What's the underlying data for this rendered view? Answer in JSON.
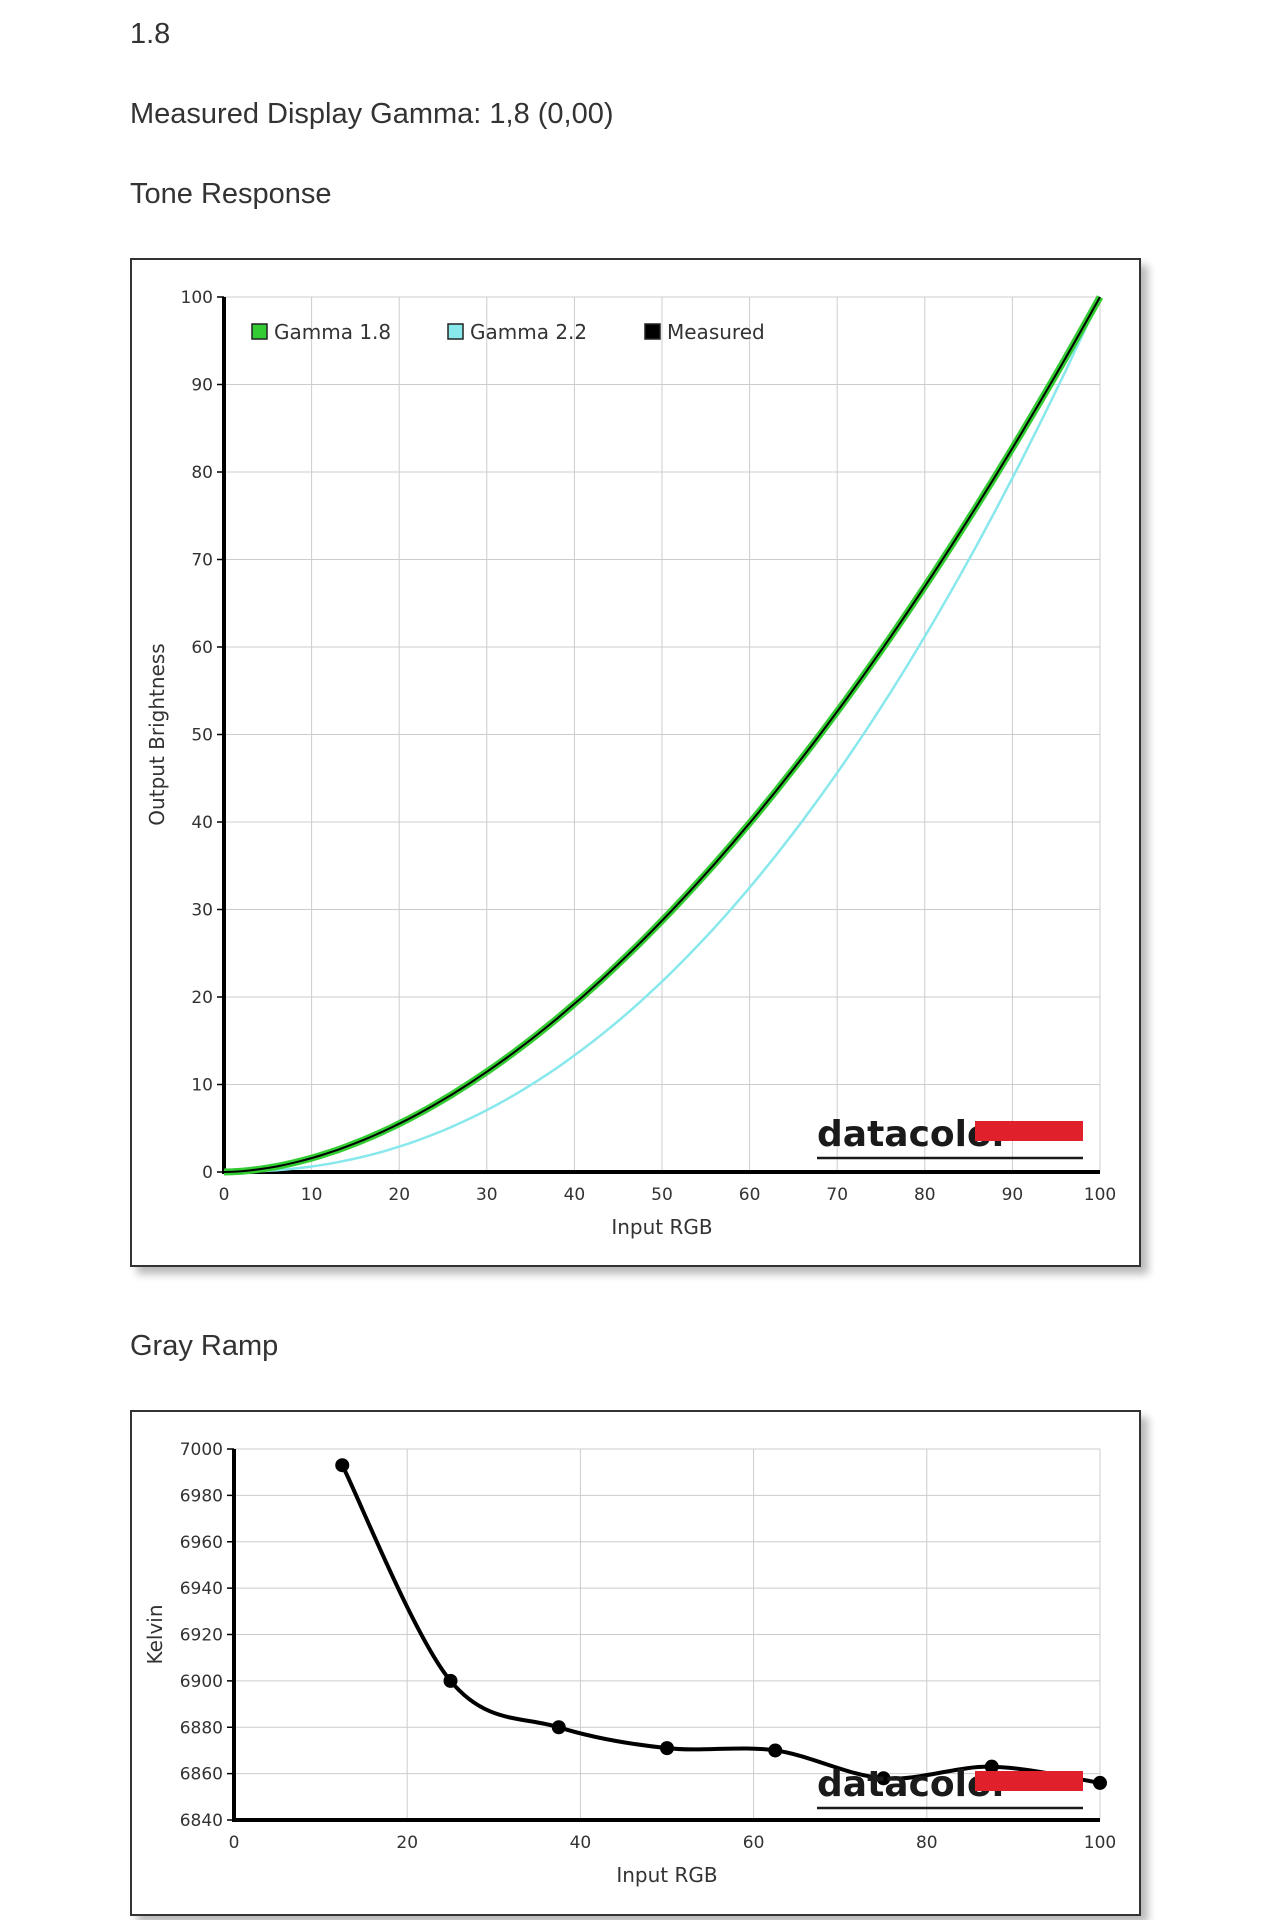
{
  "page": {
    "heading_value": "1.8",
    "measured_gamma": "Measured Display Gamma: 1,8 (0,00)",
    "tone_title": "Tone Response",
    "gray_title": "Gray Ramp",
    "brand": "datacolor"
  },
  "chart_data": [
    {
      "type": "line",
      "xlabel": "Input RGB",
      "ylabel": "Output Brightness",
      "xlim": [
        0,
        100
      ],
      "ylim": [
        0,
        100
      ],
      "xticks": [
        0,
        10,
        20,
        30,
        40,
        50,
        60,
        70,
        80,
        90,
        100
      ],
      "yticks": [
        0,
        10,
        20,
        30,
        40,
        50,
        60,
        70,
        80,
        90,
        100
      ],
      "grid": true,
      "legend_position": "top-left",
      "series": [
        {
          "name": "Gamma 1.8",
          "color": "#33cc33",
          "gamma": 1.8,
          "x": [
            0,
            10,
            20,
            30,
            40,
            50,
            60,
            70,
            80,
            90,
            100
          ],
          "values": [
            0,
            1.6,
            5.5,
            11.5,
            19.2,
            28.7,
            39.9,
            52.6,
            66.9,
            82.8,
            100
          ]
        },
        {
          "name": "Gamma 2.2",
          "color": "#88e8ec",
          "gamma": 2.2,
          "x": [
            0,
            10,
            20,
            30,
            40,
            50,
            60,
            70,
            80,
            90,
            100
          ],
          "values": [
            0,
            0.6,
            2.9,
            7.1,
            13.3,
            21.8,
            32.5,
            45.6,
            61.2,
            79.3,
            100
          ]
        },
        {
          "name": "Measured",
          "color": "#000000",
          "gamma": 1.8,
          "x": [
            0,
            10,
            20,
            30,
            40,
            50,
            60,
            70,
            80,
            90,
            100
          ],
          "values": [
            0,
            1.6,
            5.5,
            11.5,
            19.2,
            28.7,
            39.9,
            52.6,
            66.9,
            82.8,
            100
          ]
        }
      ]
    },
    {
      "type": "line",
      "xlabel": "Input RGB",
      "ylabel": "Kelvin",
      "xlim": [
        0,
        100
      ],
      "ylim": [
        6840,
        7000
      ],
      "xticks": [
        0,
        20,
        40,
        60,
        80,
        100
      ],
      "yticks": [
        6840,
        6860,
        6880,
        6900,
        6920,
        6940,
        6960,
        6980,
        7000
      ],
      "grid": true,
      "series": [
        {
          "color": "#000000",
          "x": [
            12.5,
            25,
            37.5,
            50,
            62.5,
            75,
            87.5,
            100
          ],
          "values": [
            6993,
            6900,
            6880,
            6871,
            6870,
            6858,
            6863,
            6856
          ]
        }
      ]
    }
  ]
}
